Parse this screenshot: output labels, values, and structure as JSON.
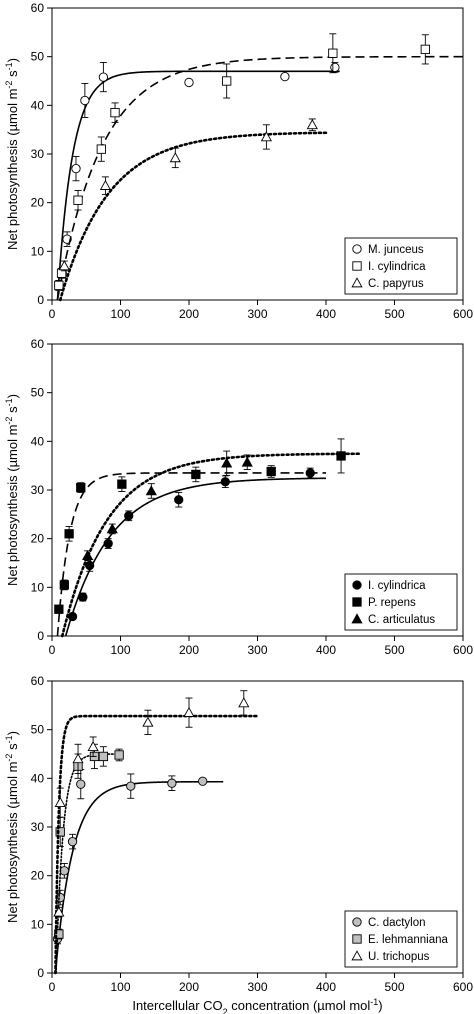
{
  "chart_data": [
    {
      "type": "scatter",
      "title": "",
      "ylabel": {
        "main": "Net photosynthesis (µmol m",
        "sup1": "-2",
        "mid": " s",
        "sup2": "-1",
        "end": ")"
      },
      "xlabel": "",
      "xlim": [
        0,
        600
      ],
      "ylim": [
        0,
        60
      ],
      "xticks": [
        "0",
        "100",
        "200",
        "300",
        "400",
        "500",
        "600"
      ],
      "yticks": [
        "0",
        "10",
        "20",
        "30",
        "40",
        "50",
        "60"
      ],
      "legend_position": "bottom-right",
      "series": [
        {
          "name": "M. junceus",
          "marker": "circle",
          "fill": "#ffffff",
          "line_style": "solid",
          "points": [
            {
              "x": 10,
              "y": 3,
              "err": 1
            },
            {
              "x": 15,
              "y": 5.5,
              "err": 1
            },
            {
              "x": 22,
              "y": 12.5,
              "err": 1.5
            },
            {
              "x": 35,
              "y": 27,
              "err": 2.5
            },
            {
              "x": 48,
              "y": 41,
              "err": 3.5
            },
            {
              "x": 75,
              "y": 45.8,
              "err": 3
            },
            {
              "x": 200,
              "y": 44.7,
              "err": 0
            },
            {
              "x": 340,
              "y": 45.9,
              "err": 0
            },
            {
              "x": 413,
              "y": 47.8,
              "err": 1
            }
          ],
          "curve": {
            "x_start": 8,
            "x_end": 420,
            "pmax": 47,
            "c0": 8,
            "k": 22
          }
        },
        {
          "name": "I. cylindrica",
          "marker": "square",
          "fill": "#ffffff",
          "line_style": "dashed",
          "points": [
            {
              "x": 10,
              "y": 3,
              "err": 1
            },
            {
              "x": 14,
              "y": 5.5,
              "err": 1
            },
            {
              "x": 38,
              "y": 20.5,
              "err": 2
            },
            {
              "x": 72,
              "y": 31,
              "err": 2.5
            },
            {
              "x": 92,
              "y": 38.5,
              "err": 2
            },
            {
              "x": 255,
              "y": 45,
              "err": 3.5
            },
            {
              "x": 410,
              "y": 50.7,
              "err": 4
            },
            {
              "x": 545,
              "y": 51.5,
              "err": 3
            }
          ],
          "curve": {
            "x_start": 8,
            "x_end": 600,
            "pmax": 50,
            "c0": 8,
            "k": 65
          }
        },
        {
          "name": "C. papyrus",
          "marker": "triangle",
          "fill": "#ffffff",
          "line_style": "dotted",
          "points": [
            {
              "x": 18,
              "y": 7,
              "err": 1
            },
            {
              "x": 78,
              "y": 23.5,
              "err": 1.8
            },
            {
              "x": 180,
              "y": 29.2,
              "err": 2
            },
            {
              "x": 313,
              "y": 33.5,
              "err": 2.5
            },
            {
              "x": 380,
              "y": 36,
              "err": 1.2
            }
          ],
          "curve": {
            "x_start": 12,
            "x_end": 400,
            "pmax": 34.5,
            "c0": 12,
            "k": 70
          }
        }
      ]
    },
    {
      "type": "scatter",
      "title": "",
      "ylabel": {
        "main": "Net photosynthesis (µmol m",
        "sup1": "-2",
        "mid": " s",
        "sup2": "-1",
        "end": ")"
      },
      "xlabel": "",
      "xlim": [
        0,
        600
      ],
      "ylim": [
        0,
        60
      ],
      "xticks": [
        "0",
        "100",
        "200",
        "300",
        "400",
        "500",
        "600"
      ],
      "yticks": [
        "0",
        "10",
        "20",
        "30",
        "40",
        "50",
        "60"
      ],
      "legend_position": "bottom-right",
      "series": [
        {
          "name": "I. cylindrica",
          "marker": "circle",
          "fill": "#000000",
          "line_style": "solid",
          "points": [
            {
              "x": 30,
              "y": 4,
              "err": 0.5
            },
            {
              "x": 45,
              "y": 8,
              "err": 0.8
            },
            {
              "x": 55,
              "y": 14.5,
              "err": 1.2
            },
            {
              "x": 82,
              "y": 19,
              "err": 1
            },
            {
              "x": 112,
              "y": 24.7,
              "err": 1
            },
            {
              "x": 185,
              "y": 28,
              "err": 1.5
            },
            {
              "x": 253,
              "y": 31.7,
              "err": 1.2
            },
            {
              "x": 377,
              "y": 33.5,
              "err": 1
            }
          ],
          "curve": {
            "x_start": 20,
            "x_end": 400,
            "pmax": 32.5,
            "c0": 20,
            "k": 65
          }
        },
        {
          "name": "P. repens",
          "marker": "square",
          "fill": "#000000",
          "line_style": "dashed",
          "points": [
            {
              "x": 10,
              "y": 5.5,
              "err": 0.5
            },
            {
              "x": 18,
              "y": 10.5,
              "err": 1
            },
            {
              "x": 25,
              "y": 21,
              "err": 1.5
            },
            {
              "x": 42,
              "y": 30.5,
              "err": 1
            },
            {
              "x": 102,
              "y": 31.2,
              "err": 1.5
            },
            {
              "x": 210,
              "y": 33.2,
              "err": 1.5
            },
            {
              "x": 320,
              "y": 33.8,
              "err": 1.2
            },
            {
              "x": 422,
              "y": 37,
              "err": 3.5
            }
          ],
          "curve": {
            "x_start": 8,
            "x_end": 400,
            "pmax": 33.5,
            "c0": 8,
            "k": 18
          }
        },
        {
          "name": "C. articulatus",
          "marker": "triangle",
          "fill": "#000000",
          "line_style": "dotted",
          "points": [
            {
              "x": 52,
              "y": 16.5,
              "err": 1
            },
            {
              "x": 88,
              "y": 22,
              "err": 1
            },
            {
              "x": 145,
              "y": 29.8,
              "err": 1.5
            },
            {
              "x": 255,
              "y": 35.5,
              "err": 2.5
            },
            {
              "x": 285,
              "y": 35.7,
              "err": 1.5
            }
          ],
          "curve": {
            "x_start": 15,
            "x_end": 450,
            "pmax": 37.5,
            "c0": 15,
            "k": 65
          }
        }
      ]
    },
    {
      "type": "scatter",
      "title": "",
      "ylabel": {
        "main": "Net photosynthesis (µmol m",
        "sup1": "-2",
        "mid": " s",
        "sup2": "-1",
        "end": ")"
      },
      "xlabel": {
        "main": "Intercellular CO",
        "sub": "2",
        "end": " concentration (µmol mol",
        "sup": "-1",
        "close": ")"
      },
      "xlim": [
        0,
        600
      ],
      "ylim": [
        0,
        60
      ],
      "xticks": [
        "0",
        "100",
        "200",
        "300",
        "400",
        "500",
        "600"
      ],
      "yticks": [
        "0",
        "10",
        "20",
        "30",
        "40",
        "50",
        "60"
      ],
      "legend_position": "bottom-right",
      "series": [
        {
          "name": "C. dactylon",
          "marker": "circle",
          "fill": "#c0c0c0",
          "line_style": "solid",
          "points": [
            {
              "x": 8,
              "y": 7,
              "err": 1
            },
            {
              "x": 12,
              "y": 15.5,
              "err": 1.5
            },
            {
              "x": 18,
              "y": 21,
              "err": 1.5
            },
            {
              "x": 30,
              "y": 27,
              "err": 1.5
            },
            {
              "x": 42,
              "y": 38.8,
              "err": 3
            },
            {
              "x": 115,
              "y": 38.4,
              "err": 2.5
            },
            {
              "x": 175,
              "y": 39,
              "err": 1.5
            },
            {
              "x": 220,
              "y": 39.4,
              "err": 0
            }
          ],
          "curve": {
            "x_start": 5,
            "x_end": 250,
            "pmax": 39.3,
            "c0": 5,
            "k": 25
          }
        },
        {
          "name": "E. lehmanniana",
          "marker": "square",
          "fill": "#c0c0c0",
          "line_style": "dotted-short",
          "points": [
            {
              "x": 10,
              "y": 8,
              "err": 1
            },
            {
              "x": 12,
              "y": 29,
              "err": 3
            },
            {
              "x": 38,
              "y": 42.5,
              "err": 2.5
            },
            {
              "x": 62,
              "y": 44.5,
              "err": 2.5
            },
            {
              "x": 75,
              "y": 44.5,
              "err": 2
            },
            {
              "x": 98,
              "y": 44.8,
              "err": 1.2
            }
          ],
          "curve": {
            "x_start": 6,
            "x_end": 100,
            "pmax": 45,
            "c0": 6,
            "k": 10
          }
        },
        {
          "name": "U. trichopus",
          "marker": "triangle",
          "fill": "#ffffff",
          "line_style": "dotted",
          "points": [
            {
              "x": 10,
              "y": 12.5,
              "err": 1
            },
            {
              "x": 12,
              "y": 35,
              "err": 3
            },
            {
              "x": 38,
              "y": 44,
              "err": 3
            },
            {
              "x": 60,
              "y": 46.5,
              "err": 2
            },
            {
              "x": 140,
              "y": 51.5,
              "err": 2.5
            },
            {
              "x": 200,
              "y": 53.5,
              "err": 3
            },
            {
              "x": 280,
              "y": 55.5,
              "err": 2.5
            }
          ],
          "curve": {
            "x_start": 5,
            "x_end": 300,
            "pmax": 52.8,
            "c0": 5,
            "k": 5
          }
        }
      ]
    }
  ]
}
